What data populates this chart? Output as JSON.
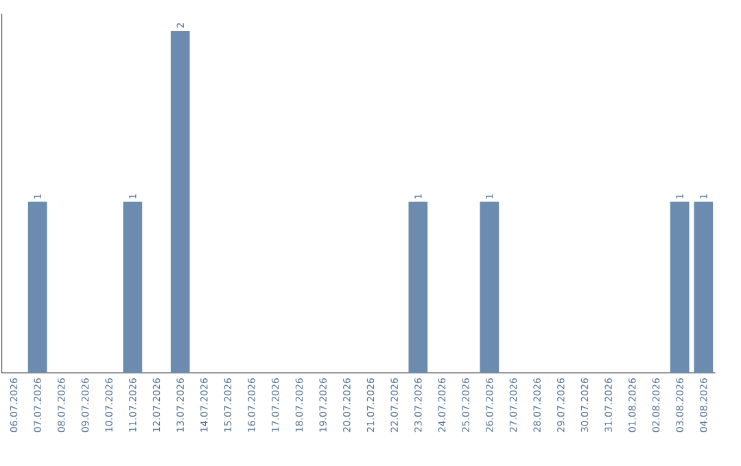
{
  "chart_data": {
    "type": "bar",
    "categories": [
      "06.07.2026",
      "07.07.2026",
      "08.07.2026",
      "09.07.2026",
      "10.07.2026",
      "11.07.2026",
      "12.07.2026",
      "13.07.2026",
      "14.07.2026",
      "15.07.2026",
      "16.07.2026",
      "17.07.2026",
      "18.07.2026",
      "19.07.2026",
      "20.07.2026",
      "21.07.2026",
      "22.07.2026",
      "23.07.2026",
      "24.07.2026",
      "25.07.2026",
      "26.07.2026",
      "27.07.2026",
      "28.07.2026",
      "29.07.2026",
      "30.07.2026",
      "31.07.2026",
      "01.08.2026",
      "02.08.2026",
      "03.08.2026",
      "04.08.2026"
    ],
    "values": [
      0,
      1,
      0,
      0,
      0,
      1,
      0,
      2,
      0,
      0,
      0,
      0,
      0,
      0,
      0,
      0,
      0,
      1,
      0,
      0,
      1,
      0,
      0,
      0,
      0,
      0,
      0,
      0,
      1,
      1
    ],
    "value_labels": [
      null,
      "1",
      null,
      null,
      null,
      "1",
      null,
      "2",
      null,
      null,
      null,
      null,
      null,
      null,
      null,
      null,
      null,
      "1",
      null,
      null,
      "1",
      null,
      null,
      null,
      null,
      null,
      null,
      null,
      "1",
      "1"
    ],
    "color": "#6b8cae"
  }
}
